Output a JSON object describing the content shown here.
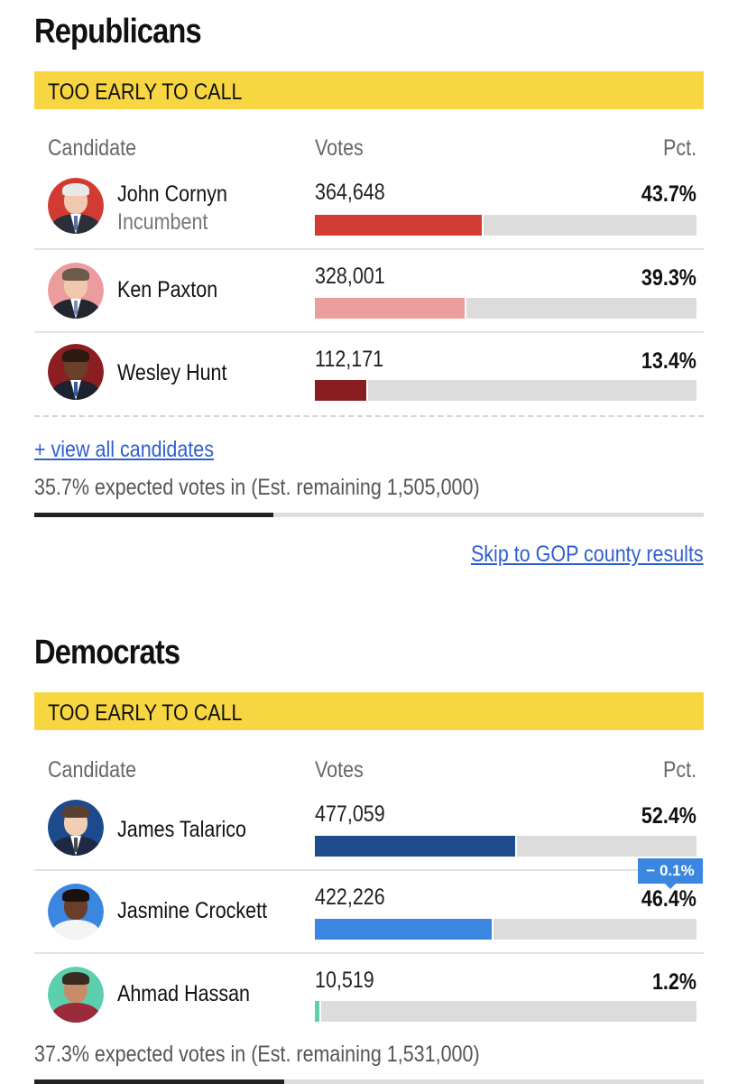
{
  "republicans": {
    "title": "Republicans",
    "status": "TOO EARLY TO CALL",
    "headers": {
      "candidate": "Candidate",
      "votes": "Votes",
      "pct": "Pct."
    },
    "candidates": [
      {
        "name": "John Cornyn",
        "subtitle": "Incumbent",
        "votes": "364,648",
        "pct": "43.7%",
        "share": 0.437,
        "color": "#d23b32",
        "avatar_ring": "#d23b32"
      },
      {
        "name": "Ken Paxton",
        "subtitle": "",
        "votes": "328,001",
        "pct": "39.3%",
        "share": 0.393,
        "color": "#eb9e9d",
        "avatar_ring": "#ec9c9c"
      },
      {
        "name": "Wesley Hunt",
        "subtitle": "",
        "votes": "112,171",
        "pct": "13.4%",
        "share": 0.134,
        "color": "#8a1d1f",
        "avatar_ring": "#8b1e21"
      }
    ],
    "view_all": "+ view all candidates",
    "expected": "35.7% expected votes in (Est. remaining 1,505,000)",
    "expected_share": 0.357,
    "skip_link": "Skip to GOP county results"
  },
  "democrats": {
    "title": "Democrats",
    "status": "TOO EARLY TO CALL",
    "headers": {
      "candidate": "Candidate",
      "votes": "Votes",
      "pct": "Pct."
    },
    "candidates": [
      {
        "name": "James Talarico",
        "subtitle": "",
        "votes": "477,059",
        "pct": "52.4%",
        "share": 0.524,
        "color": "#1f4c8f",
        "avatar_ring": "#1d4a8c"
      },
      {
        "name": "Jasmine Crockett",
        "subtitle": "",
        "votes": "422,226",
        "pct": "46.4%",
        "share": 0.464,
        "color": "#3a86e0",
        "avatar_ring": "#3b87e0",
        "change_badge": "− 0.1%"
      },
      {
        "name": "Ahmad Hassan",
        "subtitle": "",
        "votes": "10,519",
        "pct": "1.2%",
        "share": 0.012,
        "color": "#5fd0b0",
        "avatar_ring": "#5ccfae"
      }
    ],
    "expected": "37.3% expected votes in (Est. remaining 1,531,000)",
    "expected_share": 0.373
  }
}
